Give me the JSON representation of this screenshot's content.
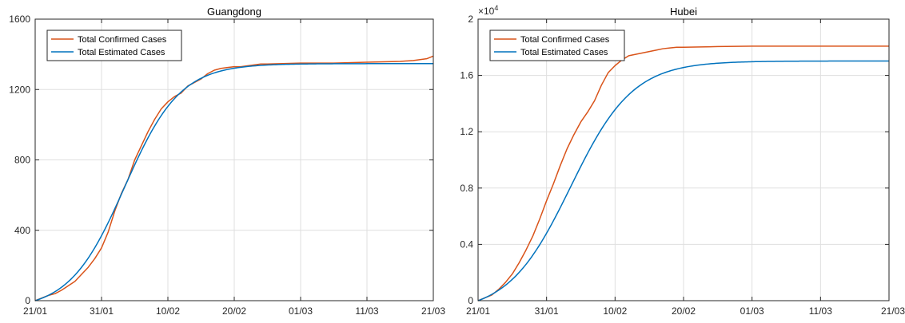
{
  "chart_data": [
    {
      "type": "line",
      "title": "Guangdong",
      "xlabel": "",
      "ylabel": "",
      "x_ticks": [
        "21/01",
        "31/01",
        "10/02",
        "20/02",
        "01/03",
        "11/03",
        "21/03"
      ],
      "xlim": [
        0,
        60
      ],
      "ylim": [
        0,
        1600
      ],
      "y_ticks": [
        0,
        400,
        800,
        1200,
        1600
      ],
      "y_tick_labels": [
        "0",
        "400",
        "800",
        "1200",
        "1600"
      ],
      "y_exponent": "",
      "grid": true,
      "legend_position": "top-left",
      "series": [
        {
          "name": "Total Confirmed Cases",
          "color": "#d95319",
          "x": [
            0,
            1,
            2,
            3,
            4,
            5,
            6,
            7,
            8,
            9,
            10,
            11,
            12,
            13,
            14,
            15,
            16,
            17,
            18,
            19,
            20,
            21,
            22,
            23,
            24,
            25,
            26,
            27,
            28,
            29,
            30,
            31,
            32,
            33,
            34,
            35,
            40,
            45,
            50,
            55,
            57,
            58,
            59,
            60
          ],
          "y": [
            0,
            15,
            30,
            40,
            60,
            85,
            110,
            150,
            190,
            240,
            300,
            390,
            510,
            610,
            690,
            800,
            880,
            960,
            1030,
            1090,
            1130,
            1160,
            1180,
            1220,
            1240,
            1260,
            1290,
            1310,
            1320,
            1325,
            1330,
            1330,
            1335,
            1340,
            1345,
            1345,
            1350,
            1350,
            1355,
            1360,
            1365,
            1370,
            1375,
            1390
          ]
        },
        {
          "name": "Total Estimated Cases",
          "color": "#0072bd",
          "logistic": {
            "K": 1400,
            "r": 0.24,
            "x0": 13.5
          },
          "x_range": [
            0,
            60
          ]
        }
      ]
    },
    {
      "type": "line",
      "title": "Hubei",
      "xlabel": "",
      "ylabel": "",
      "x_ticks": [
        "21/01",
        "31/01",
        "10/02",
        "20/02",
        "01/03",
        "11/03",
        "21/03"
      ],
      "xlim": [
        0,
        60
      ],
      "ylim": [
        0,
        20000
      ],
      "y_ticks": [
        0,
        4000,
        8000,
        12000,
        16000,
        20000
      ],
      "y_tick_labels": [
        "0",
        "0.4",
        "0.8",
        "1.2",
        "1.6",
        "2"
      ],
      "y_exponent": "×10",
      "y_exponent_power": "4",
      "grid": true,
      "legend_position": "top-left",
      "series": [
        {
          "name": "Total Confirmed Cases",
          "color": "#d95319",
          "x": [
            0,
            1,
            2,
            3,
            4,
            5,
            6,
            7,
            8,
            9,
            10,
            11,
            12,
            13,
            14,
            15,
            16,
            17,
            18,
            19,
            20,
            21,
            22,
            23,
            24,
            25,
            26,
            27,
            28,
            29,
            30,
            35,
            40,
            45,
            50,
            55,
            60
          ],
          "y": [
            0,
            200,
            400,
            800,
            1300,
            1900,
            2700,
            3600,
            4600,
            5800,
            7100,
            8300,
            9600,
            10800,
            11800,
            12700,
            13400,
            14200,
            15300,
            16200,
            16700,
            17100,
            17400,
            17500,
            17600,
            17700,
            17800,
            17900,
            17950,
            18000,
            18000,
            18050,
            18080,
            18080,
            18080,
            18080,
            18080
          ]
        },
        {
          "name": "Total Estimated Cases",
          "color": "#0072bd",
          "logistic": {
            "K": 17900,
            "r": 0.22,
            "x0": 13.5
          },
          "x_range": [
            0,
            60
          ]
        }
      ]
    }
  ]
}
